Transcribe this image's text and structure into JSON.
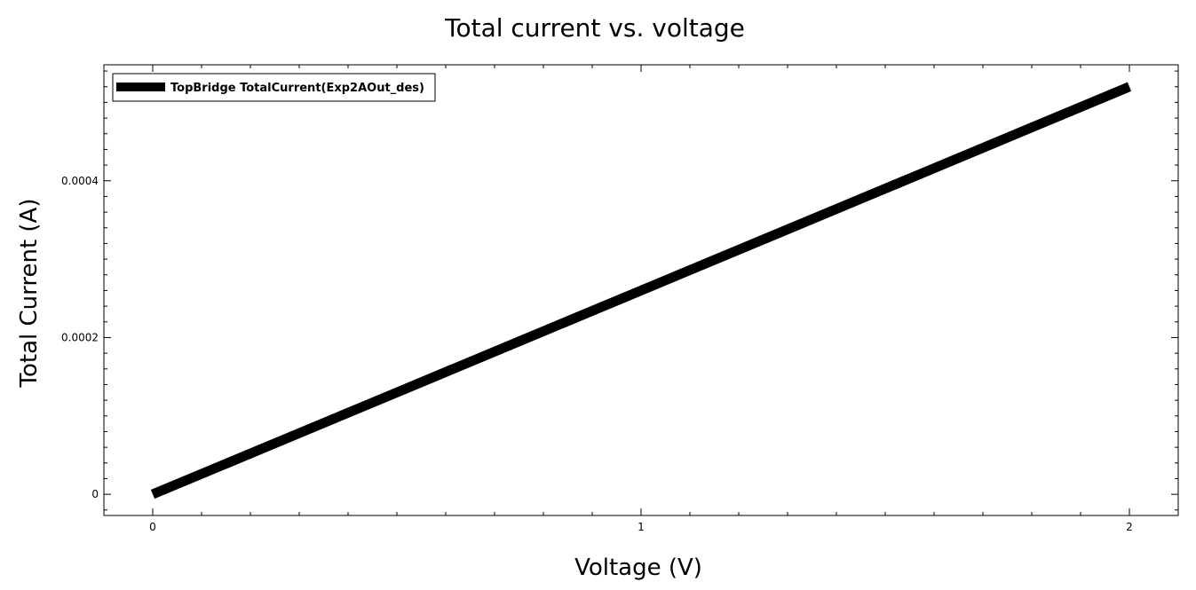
{
  "chart_data": {
    "type": "line",
    "title": "Total current vs. voltage",
    "xlabel": "Voltage (V)",
    "ylabel": "Total Current (A)",
    "xlim": [
      -0.1,
      2.1
    ],
    "ylim": [
      -2.7e-05,
      0.000548
    ],
    "x_ticks": [
      0,
      1,
      2
    ],
    "x_tick_labels": [
      "0",
      "1",
      "2"
    ],
    "y_ticks": [
      0,
      0.0002,
      0.0004
    ],
    "y_tick_labels": [
      "0",
      "0.0002",
      "0.0004"
    ],
    "grid": false,
    "legend_position": "top-left",
    "series": [
      {
        "name": "TopBridge TotalCurrent(Exp2AOut_des)",
        "color": "#000000",
        "x": [
          0,
          0.5,
          1,
          1.5,
          2
        ],
        "y": [
          0,
          0.00013,
          0.00026,
          0.00039,
          0.00052
        ]
      }
    ]
  }
}
